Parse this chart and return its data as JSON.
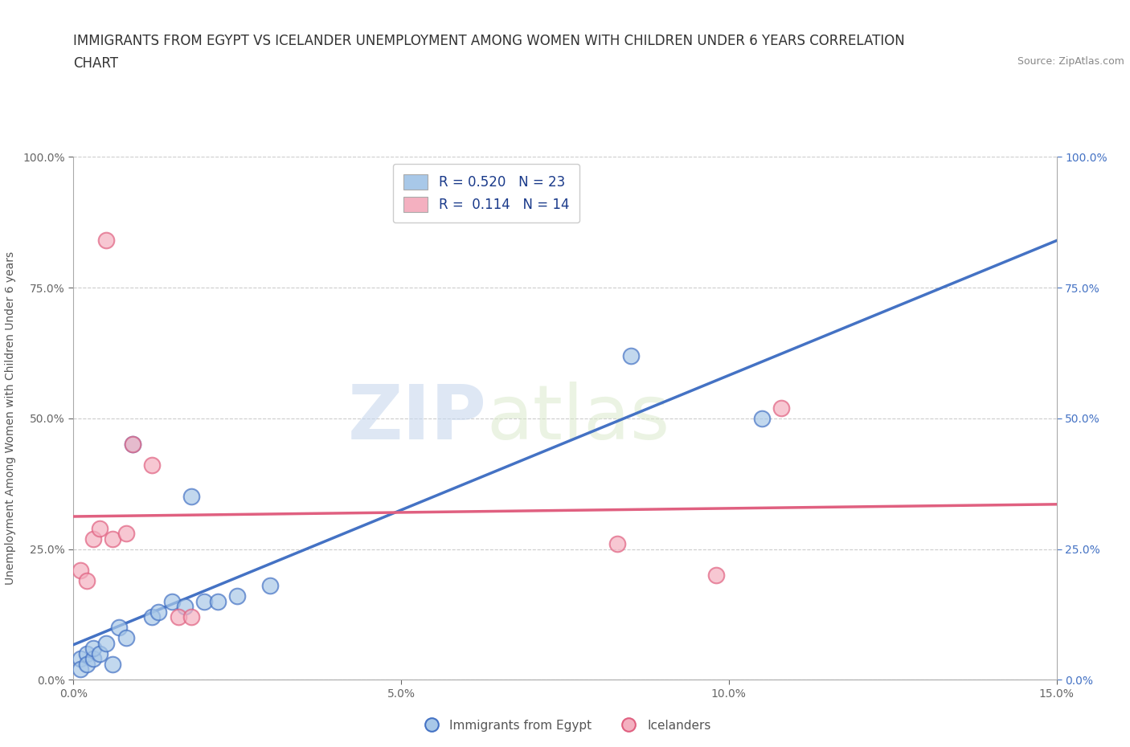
{
  "title_line1": "IMMIGRANTS FROM EGYPT VS ICELANDER UNEMPLOYMENT AMONG WOMEN WITH CHILDREN UNDER 6 YEARS CORRELATION",
  "title_line2": "CHART",
  "source": "Source: ZipAtlas.com",
  "ylabel": "Unemployment Among Women with Children Under 6 years",
  "xlabel_bottom": "Immigrants from Egypt",
  "xlim": [
    0.0,
    0.15
  ],
  "ylim": [
    0.0,
    1.0
  ],
  "xticks": [
    0.0,
    0.05,
    0.1,
    0.15
  ],
  "xticklabels": [
    "0.0%",
    "5.0%",
    "10.0%",
    "15.0%"
  ],
  "yticks_left": [
    0.0,
    0.25,
    0.5,
    0.75,
    1.0
  ],
  "yticklabels_left": [
    "0.0%",
    "25.0%",
    "50.0%",
    "75.0%",
    "100.0%"
  ],
  "yticks_right": [
    0.0,
    0.25,
    0.5,
    0.75,
    1.0
  ],
  "yticklabels_right": [
    "0.0%",
    "25.0%",
    "50.0%",
    "75.0%",
    "100.0%"
  ],
  "blue_color": "#a8c8e8",
  "pink_color": "#f4b0c0",
  "blue_line_color": "#4472c4",
  "pink_line_color": "#e06080",
  "right_tick_color": "#4472c4",
  "legend_blue_label": "R = 0.520   N = 23",
  "legend_pink_label": "R =  0.114   N = 14",
  "legend_blue_series": "Immigrants from Egypt",
  "legend_pink_series": "Icelanders",
  "blue_x": [
    0.001,
    0.001,
    0.002,
    0.002,
    0.003,
    0.003,
    0.004,
    0.005,
    0.006,
    0.007,
    0.008,
    0.009,
    0.012,
    0.013,
    0.015,
    0.017,
    0.018,
    0.02,
    0.022,
    0.025,
    0.03,
    0.085,
    0.105
  ],
  "blue_y": [
    0.04,
    0.02,
    0.05,
    0.03,
    0.04,
    0.06,
    0.05,
    0.07,
    0.03,
    0.1,
    0.08,
    0.45,
    0.12,
    0.13,
    0.15,
    0.14,
    0.35,
    0.15,
    0.15,
    0.16,
    0.18,
    0.62,
    0.5
  ],
  "pink_x": [
    0.001,
    0.002,
    0.003,
    0.004,
    0.005,
    0.006,
    0.008,
    0.009,
    0.012,
    0.016,
    0.018,
    0.083,
    0.098,
    0.108
  ],
  "pink_y": [
    0.21,
    0.19,
    0.27,
    0.29,
    0.84,
    0.27,
    0.28,
    0.45,
    0.41,
    0.12,
    0.12,
    0.26,
    0.2,
    0.52
  ],
  "watermark_zip": "ZIP",
  "watermark_atlas": "atlas",
  "background_color": "#ffffff",
  "grid_color": "#cccccc",
  "title_fontsize": 12,
  "axis_label_fontsize": 10,
  "tick_fontsize": 10,
  "legend_fontsize": 12
}
